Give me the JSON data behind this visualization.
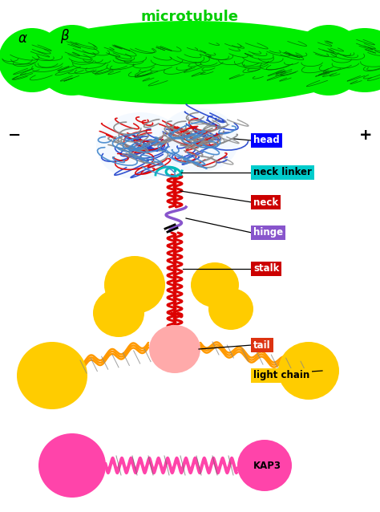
{
  "title": "microtubule",
  "title_color": "#00cc00",
  "title_fontsize": 13,
  "bg_color": "#ffffff",
  "alpha_label": "α",
  "beta_label": "β",
  "minus_label": "−",
  "plus_label": "+",
  "labels": {
    "head": {
      "text": "head",
      "bg": "#0000ff",
      "fg": "#ffffff"
    },
    "neck_linker": {
      "text": "neck linker",
      "bg": "#00cccc",
      "fg": "#000000"
    },
    "neck": {
      "text": "neck",
      "bg": "#cc0000",
      "fg": "#ffffff"
    },
    "hinge": {
      "text": "hinge",
      "bg": "#8855cc",
      "fg": "#ffffff"
    },
    "stalk": {
      "text": "stalk",
      "bg": "#cc0000",
      "fg": "#ffffff"
    },
    "tail": {
      "text": "tail",
      "bg": "#dd3311",
      "fg": "#ffffff"
    },
    "light_chain": {
      "text": "light chain",
      "bg": "#ffcc00",
      "fg": "#000000"
    },
    "KAP3": {
      "text": "KAP3",
      "bg": "#ff44aa",
      "fg": "#000000"
    }
  },
  "mt_color": "#00ee00",
  "mt_dark": "#005500",
  "head_blue": "#2244cc",
  "head_red": "#dd0000",
  "neck_linker_color": "#00bbbb",
  "stalk_color": "#dd0000",
  "hinge_color": "#8855cc",
  "orange_color": "#ff9900",
  "tail_blob_color": "#ffaaaa",
  "kap3_color": "#ff44aa",
  "gold_color": "#ffcc00",
  "gray_color": "#aaaaaa"
}
